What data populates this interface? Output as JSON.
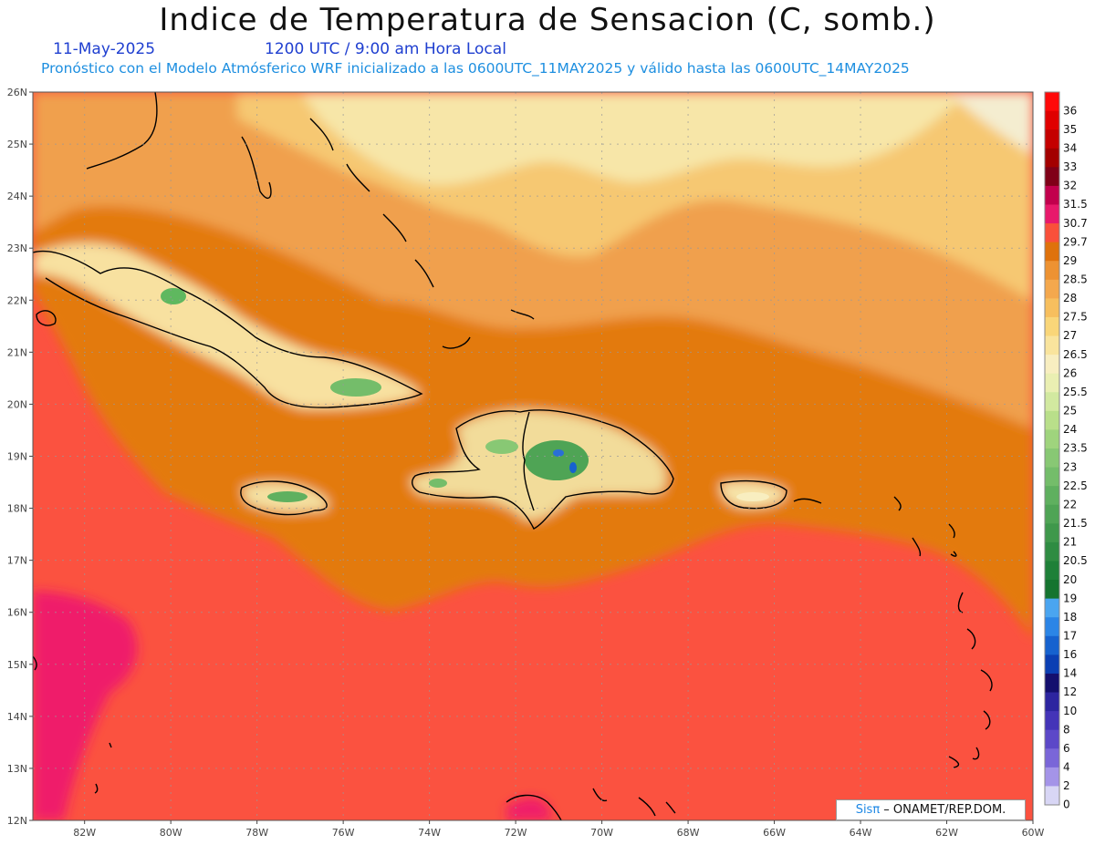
{
  "header": {
    "title": "Indice de Temperatura de Sensacion (C, somb.)",
    "date": "11-May-2025",
    "utc_line": "1200 UTC / 9:00 am Hora Local",
    "forecast_line": "Pronóstico con el Modelo Atmósferico WRF inicializado a las 0600UTC_11MAY2025 y válido hasta las  0600UTC_14MAY2025"
  },
  "map": {
    "lat_labels": [
      "26N",
      "25N",
      "24N",
      "23N",
      "22N",
      "21N",
      "20N",
      "19N",
      "18N",
      "17N",
      "16N",
      "15N",
      "14N",
      "13N",
      "12N"
    ],
    "lon_labels": [
      "82W",
      "80W",
      "78W",
      "76W",
      "74W",
      "72W",
      "70W",
      "68W",
      "66W",
      "64W",
      "62W",
      "60W"
    ],
    "lat_range": [
      12,
      26
    ],
    "lon_range": [
      -83.2,
      -60
    ],
    "grid": true,
    "colors": {
      "hot_sea": "#fb5240",
      "warm": "#e37a10",
      "mid": "#f0a04d",
      "mild": "#f6c872",
      "pale": "#f7e6a8",
      "magenta": "#ef1d6b",
      "green": "#5fb85f",
      "blue": "#2a6fd6"
    }
  },
  "colorbar": {
    "labels": [
      "36",
      "35",
      "34",
      "33",
      "32",
      "31.5",
      "30.7",
      "29.7",
      "29",
      "28.5",
      "28",
      "27.5",
      "27",
      "26.5",
      "26",
      "25.5",
      "25",
      "24",
      "23.5",
      "23",
      "22.5",
      "22",
      "21.5",
      "21",
      "20.5",
      "20",
      "19",
      "18",
      "17",
      "16",
      "14",
      "12",
      "10",
      "8",
      "6",
      "4",
      "2",
      "0"
    ],
    "colors": [
      "#ff0a0a",
      "#e00000",
      "#c40000",
      "#a30000",
      "#800018",
      "#c2004d",
      "#e8196b",
      "#f9503a",
      "#df720c",
      "#ed9232",
      "#f4a84d",
      "#f7bf5e",
      "#f9d679",
      "#f9e49d",
      "#f8eec0",
      "#eaefb2",
      "#d2e9a0",
      "#b9df8a",
      "#9fd47d",
      "#88c874",
      "#74bd6a",
      "#5fb05f",
      "#4fa455",
      "#3f984b",
      "#2f8c42",
      "#1e8038",
      "#15742f",
      "#4aa5f0",
      "#2b85e6",
      "#1662cf",
      "#0b3fb3",
      "#140f6e",
      "#2d25a0",
      "#4434b8",
      "#5c48c8",
      "#7a66d8",
      "#a494e8",
      "#d8d6f5"
    ]
  },
  "credit": {
    "brand": "Sisπ",
    "text": " – ONAMET/REP.DOM."
  }
}
